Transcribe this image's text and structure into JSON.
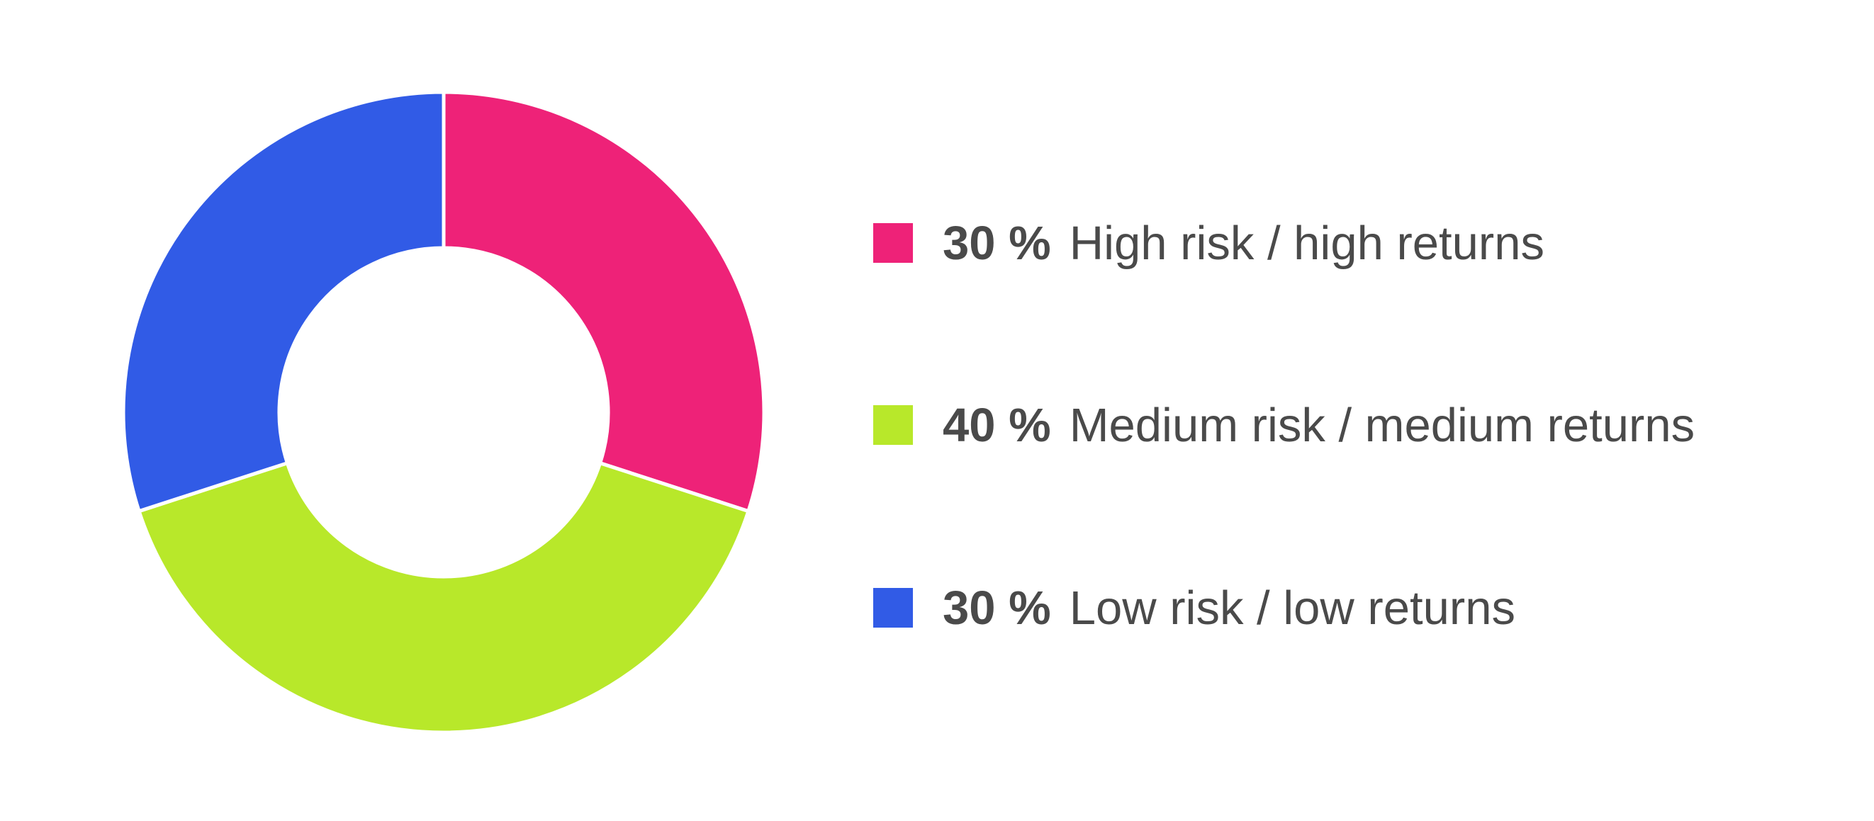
{
  "chart_data": {
    "type": "pie",
    "donut": true,
    "title": "",
    "legend_position": "right",
    "slices": [
      {
        "value_text": "30 %",
        "label": "High risk / high returns",
        "value": 30,
        "color": "#ee2278"
      },
      {
        "value_text": "40 %",
        "label": "Medium risk / medium returns",
        "value": 40,
        "color": "#b8e82a"
      },
      {
        "value_text": "30 %",
        "label": "Low risk / low returns",
        "value": 30,
        "color": "#315be6"
      }
    ]
  }
}
